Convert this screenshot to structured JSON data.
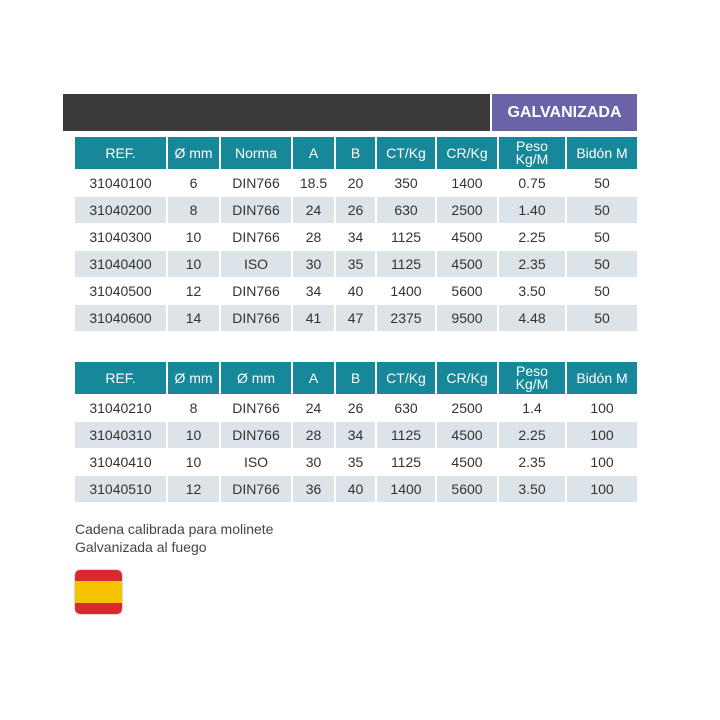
{
  "banner": {
    "label": "GALVANIZADA"
  },
  "tables": [
    {
      "header": [
        "REF.",
        "Ø mm",
        "Norma",
        "A",
        "B",
        "CT/Kg",
        "CR/Kg",
        "Peso\nKg/M",
        "Bidón M"
      ],
      "rows": [
        [
          "31040100",
          "6",
          "DIN766",
          "18.5",
          "20",
          "350",
          "1400",
          "0.75",
          "50"
        ],
        [
          "31040200",
          "8",
          "DIN766",
          "24",
          "26",
          "630",
          "2500",
          "1.40",
          "50"
        ],
        [
          "31040300",
          "10",
          "DIN766",
          "28",
          "34",
          "1125",
          "4500",
          "2.25",
          "50"
        ],
        [
          "31040400",
          "10",
          "ISO",
          "30",
          "35",
          "1125",
          "4500",
          "2.35",
          "50"
        ],
        [
          "31040500",
          "12",
          "DIN766",
          "34",
          "40",
          "1400",
          "5600",
          "3.50",
          "50"
        ],
        [
          "31040600",
          "14",
          "DIN766",
          "41",
          "47",
          "2375",
          "9500",
          "4.48",
          "50"
        ]
      ]
    },
    {
      "header": [
        "REF.",
        "Ø mm",
        "Ø mm",
        "A",
        "B",
        "CT/Kg",
        "CR/Kg",
        "Peso\nKg/M",
        "Bidón M"
      ],
      "rows": [
        [
          "31040210",
          "8",
          "DIN766",
          "24",
          "26",
          "630",
          "2500",
          "1.4",
          "100"
        ],
        [
          "31040310",
          "10",
          "DIN766",
          "28",
          "34",
          "1125",
          "4500",
          "2.25",
          "100"
        ],
        [
          "31040410",
          "10",
          "ISO",
          "30",
          "35",
          "1125",
          "4500",
          "2.35",
          "100"
        ],
        [
          "31040510",
          "12",
          "DIN766",
          "36",
          "40",
          "1400",
          "5600",
          "3.50",
          "100"
        ]
      ]
    }
  ],
  "notes": [
    "Cadena calibrada para molinete",
    "Galvanizada al fuego"
  ]
}
